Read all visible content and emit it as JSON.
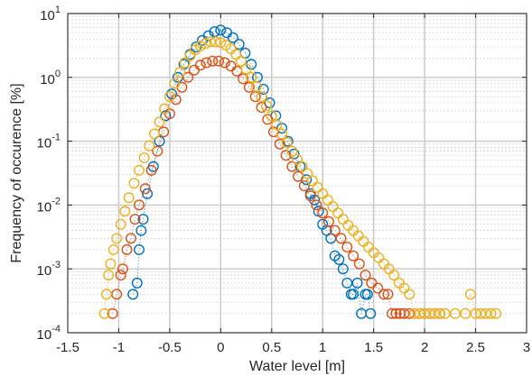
{
  "chart_data": {
    "type": "scatter",
    "title": "",
    "xlabel": "Water level [m]",
    "ylabel": "Frequency of occurence [%]",
    "xlim": [
      -1.5,
      3
    ],
    "ylim": [
      0.0001,
      10
    ],
    "yscale": "log",
    "grid": {
      "major": true,
      "minor_y": true
    },
    "legend": "none",
    "xticks": [
      {
        "value": -1.5,
        "label": "-1.5"
      },
      {
        "value": -1,
        "label": "-1"
      },
      {
        "value": -0.5,
        "label": "-0.5"
      },
      {
        "value": 0,
        "label": "0"
      },
      {
        "value": 0.5,
        "label": "0.5"
      },
      {
        "value": 1,
        "label": "1"
      },
      {
        "value": 1.5,
        "label": "1.5"
      },
      {
        "value": 2,
        "label": "2"
      },
      {
        "value": 2.5,
        "label": "2.5"
      },
      {
        "value": 3,
        "label": "3"
      }
    ],
    "yticks": [
      {
        "value": 0.0001,
        "base": "10",
        "exp": "-4"
      },
      {
        "value": 0.001,
        "base": "10",
        "exp": "-3"
      },
      {
        "value": 0.01,
        "base": "10",
        "exp": "-2"
      },
      {
        "value": 0.1,
        "base": "10",
        "exp": "-1"
      },
      {
        "value": 1,
        "base": "10",
        "exp": "0"
      },
      {
        "value": 10,
        "base": "10",
        "exp": "1"
      }
    ],
    "series": [
      {
        "color": "#0072BD",
        "marker": "circle",
        "points": [
          [
            -0.86,
            0.0004
          ],
          [
            -0.82,
            0.0006
          ],
          [
            -0.8,
            0.002
          ],
          [
            -0.78,
            0.004
          ],
          [
            -0.76,
            0.006
          ],
          [
            -0.72,
            0.015
          ],
          [
            -0.66,
            0.04
          ],
          [
            -0.6,
            0.1
          ],
          [
            -0.54,
            0.25
          ],
          [
            -0.48,
            0.55
          ],
          [
            -0.42,
            1.0
          ],
          [
            -0.36,
            1.6
          ],
          [
            -0.3,
            2.3
          ],
          [
            -0.24,
            3.0
          ],
          [
            -0.18,
            3.8
          ],
          [
            -0.12,
            4.5
          ],
          [
            -0.06,
            5.2
          ],
          [
            0.0,
            5.5
          ],
          [
            0.06,
            5.0
          ],
          [
            0.12,
            4.2
          ],
          [
            0.18,
            3.3
          ],
          [
            0.24,
            2.4
          ],
          [
            0.3,
            1.6
          ],
          [
            0.36,
            1.0
          ],
          [
            0.42,
            0.65
          ],
          [
            0.48,
            0.4
          ],
          [
            0.54,
            0.25
          ],
          [
            0.6,
            0.16
          ],
          [
            0.66,
            0.1
          ],
          [
            0.72,
            0.063
          ],
          [
            0.78,
            0.04
          ],
          [
            0.84,
            0.025
          ],
          [
            0.88,
            0.015
          ],
          [
            0.92,
            0.012
          ],
          [
            0.96,
            0.008
          ],
          [
            1.0,
            0.005
          ],
          [
            1.04,
            0.004
          ],
          [
            1.08,
            0.003
          ],
          [
            1.12,
            0.0016
          ],
          [
            1.16,
            0.0014
          ],
          [
            1.2,
            0.001
          ],
          [
            1.24,
            0.0006
          ],
          [
            1.28,
            0.0004
          ],
          [
            1.3,
            0.0004
          ],
          [
            1.34,
            0.0006
          ],
          [
            1.38,
            0.0002
          ],
          [
            1.42,
            0.0004
          ],
          [
            1.44,
            0.0004
          ],
          [
            1.47,
            0.0002
          ]
        ]
      },
      {
        "color": "#D95319",
        "marker": "circle",
        "points": [
          [
            -1.06,
            0.0002
          ],
          [
            -1.02,
            0.0004
          ],
          [
            -0.98,
            0.0008
          ],
          [
            -0.96,
            0.001
          ],
          [
            -0.92,
            0.002
          ],
          [
            -0.88,
            0.003
          ],
          [
            -0.84,
            0.006
          ],
          [
            -0.8,
            0.01
          ],
          [
            -0.74,
            0.018
          ],
          [
            -0.68,
            0.035
          ],
          [
            -0.62,
            0.07
          ],
          [
            -0.56,
            0.14
          ],
          [
            -0.5,
            0.27
          ],
          [
            -0.44,
            0.45
          ],
          [
            -0.38,
            0.7
          ],
          [
            -0.32,
            1.0
          ],
          [
            -0.26,
            1.3
          ],
          [
            -0.2,
            1.55
          ],
          [
            -0.14,
            1.7
          ],
          [
            -0.08,
            1.8
          ],
          [
            -0.02,
            1.8
          ],
          [
            0.04,
            1.7
          ],
          [
            0.1,
            1.5
          ],
          [
            0.16,
            1.25
          ],
          [
            0.22,
            0.95
          ],
          [
            0.28,
            0.7
          ],
          [
            0.34,
            0.5
          ],
          [
            0.4,
            0.34
          ],
          [
            0.46,
            0.22
          ],
          [
            0.52,
            0.14
          ],
          [
            0.58,
            0.09
          ],
          [
            0.64,
            0.06
          ],
          [
            0.7,
            0.04
          ],
          [
            0.76,
            0.028
          ],
          [
            0.82,
            0.02
          ],
          [
            0.88,
            0.014
          ],
          [
            0.94,
            0.01
          ],
          [
            1.0,
            0.0075
          ],
          [
            1.06,
            0.0055
          ],
          [
            1.12,
            0.004
          ],
          [
            1.18,
            0.003
          ],
          [
            1.24,
            0.0022
          ],
          [
            1.3,
            0.0016
          ],
          [
            1.36,
            0.0012
          ],
          [
            1.42,
            0.0008
          ],
          [
            1.48,
            0.0006
          ],
          [
            1.54,
            0.0005
          ],
          [
            1.6,
            0.0004
          ],
          [
            1.64,
            0.0004
          ],
          [
            1.68,
            0.0002
          ],
          [
            1.72,
            0.0002
          ],
          [
            1.76,
            0.0002
          ],
          [
            1.8,
            0.0002
          ],
          [
            1.85,
            0.0002
          ],
          [
            1.9,
            0.0002
          ],
          [
            1.95,
            0.0002
          ],
          [
            2.0,
            0.0002
          ],
          [
            2.05,
            0.0002
          ],
          [
            2.1,
            0.0002
          ],
          [
            2.15,
            0.0002
          ]
        ]
      },
      {
        "color": "#EDB120",
        "marker": "circle",
        "points": [
          [
            -1.14,
            0.0002
          ],
          [
            -1.12,
            0.0004
          ],
          [
            -1.1,
            0.0008
          ],
          [
            -1.08,
            0.0012
          ],
          [
            -1.05,
            0.002
          ],
          [
            -1.02,
            0.003
          ],
          [
            -0.98,
            0.005
          ],
          [
            -0.94,
            0.008
          ],
          [
            -0.9,
            0.013
          ],
          [
            -0.85,
            0.022
          ],
          [
            -0.8,
            0.035
          ],
          [
            -0.75,
            0.055
          ],
          [
            -0.7,
            0.085
          ],
          [
            -0.65,
            0.13
          ],
          [
            -0.6,
            0.2
          ],
          [
            -0.55,
            0.32
          ],
          [
            -0.5,
            0.5
          ],
          [
            -0.45,
            0.8
          ],
          [
            -0.4,
            1.2
          ],
          [
            -0.35,
            1.7
          ],
          [
            -0.3,
            2.2
          ],
          [
            -0.25,
            2.7
          ],
          [
            -0.2,
            3.1
          ],
          [
            -0.15,
            3.4
          ],
          [
            -0.1,
            3.6
          ],
          [
            -0.05,
            3.6
          ],
          [
            0.0,
            3.5
          ],
          [
            0.05,
            3.2
          ],
          [
            0.1,
            2.8
          ],
          [
            0.15,
            2.3
          ],
          [
            0.2,
            1.8
          ],
          [
            0.25,
            1.35
          ],
          [
            0.3,
            1.0
          ],
          [
            0.35,
            0.72
          ],
          [
            0.4,
            0.5
          ],
          [
            0.45,
            0.36
          ],
          [
            0.5,
            0.25
          ],
          [
            0.55,
            0.18
          ],
          [
            0.6,
            0.13
          ],
          [
            0.65,
            0.095
          ],
          [
            0.7,
            0.07
          ],
          [
            0.75,
            0.052
          ],
          [
            0.8,
            0.04
          ],
          [
            0.85,
            0.031
          ],
          [
            0.9,
            0.024
          ],
          [
            0.95,
            0.019
          ],
          [
            1.0,
            0.015
          ],
          [
            1.05,
            0.012
          ],
          [
            1.1,
            0.0095
          ],
          [
            1.15,
            0.0075
          ],
          [
            1.2,
            0.006
          ],
          [
            1.25,
            0.0048
          ],
          [
            1.3,
            0.004
          ],
          [
            1.35,
            0.0033
          ],
          [
            1.4,
            0.0027
          ],
          [
            1.45,
            0.0022
          ],
          [
            1.5,
            0.0018
          ],
          [
            1.55,
            0.0015
          ],
          [
            1.6,
            0.0012
          ],
          [
            1.65,
            0.001
          ],
          [
            1.7,
            0.0008
          ],
          [
            1.75,
            0.0006
          ],
          [
            1.8,
            0.0005
          ],
          [
            1.85,
            0.0004
          ],
          [
            1.9,
            0.0002
          ],
          [
            1.95,
            0.0002
          ],
          [
            2.0,
            0.0002
          ],
          [
            2.05,
            0.0002
          ],
          [
            2.1,
            0.0002
          ],
          [
            2.15,
            0.0002
          ],
          [
            2.2,
            0.0002
          ],
          [
            2.3,
            0.0002
          ],
          [
            2.4,
            0.0002
          ],
          [
            2.45,
            0.0004
          ],
          [
            2.5,
            0.0002
          ],
          [
            2.55,
            0.0002
          ],
          [
            2.6,
            0.0002
          ],
          [
            2.65,
            0.0002
          ],
          [
            2.7,
            0.0002
          ]
        ]
      }
    ]
  }
}
